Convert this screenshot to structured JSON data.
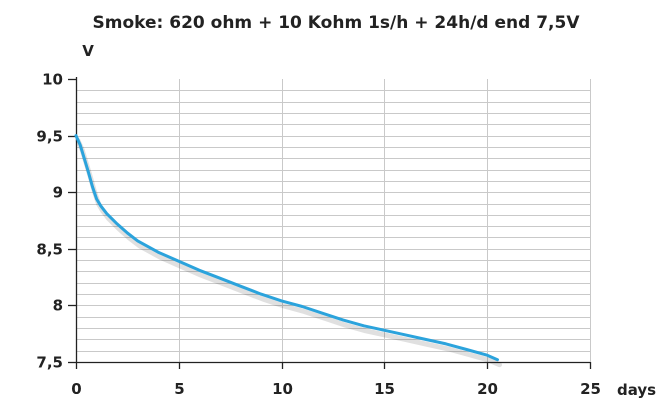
{
  "chart_data": {
    "type": "line",
    "title": "Smoke: 620 ohm + 10 Kohm 1s/h + 24h/d end 7,5V",
    "ylabel": "V",
    "xlabel": "days",
    "xlim": [
      0,
      25
    ],
    "ylim": [
      7.5,
      10
    ],
    "x_ticks": [
      0,
      5,
      10,
      15,
      20,
      25
    ],
    "x_tick_labels": [
      "0",
      "5",
      "10",
      "15",
      "20",
      "25"
    ],
    "y_ticks": [
      7.5,
      8,
      8.5,
      9,
      9.5,
      10
    ],
    "y_tick_labels": [
      "7,5",
      "8",
      "8,5",
      "9",
      "9,5",
      "10"
    ],
    "grid": true,
    "legend": "none",
    "line_color": "#2ba3dc",
    "grid_color": "#c9c9c9",
    "series": [
      {
        "x": [
          0,
          0.2,
          0.4,
          0.6,
          0.8,
          1,
          1.2,
          1.5,
          2,
          2.5,
          3,
          4,
          5,
          6,
          7,
          8,
          9,
          10,
          11,
          12,
          13,
          14,
          15,
          16,
          17,
          18,
          19,
          20,
          20.5
        ],
        "values": [
          9.5,
          9.42,
          9.3,
          9.18,
          9.05,
          8.94,
          8.88,
          8.81,
          8.72,
          8.64,
          8.57,
          8.47,
          8.39,
          8.31,
          8.24,
          8.17,
          8.1,
          8.04,
          7.99,
          7.93,
          7.87,
          7.82,
          7.78,
          7.74,
          7.7,
          7.66,
          7.61,
          7.56,
          7.52
        ]
      }
    ]
  }
}
